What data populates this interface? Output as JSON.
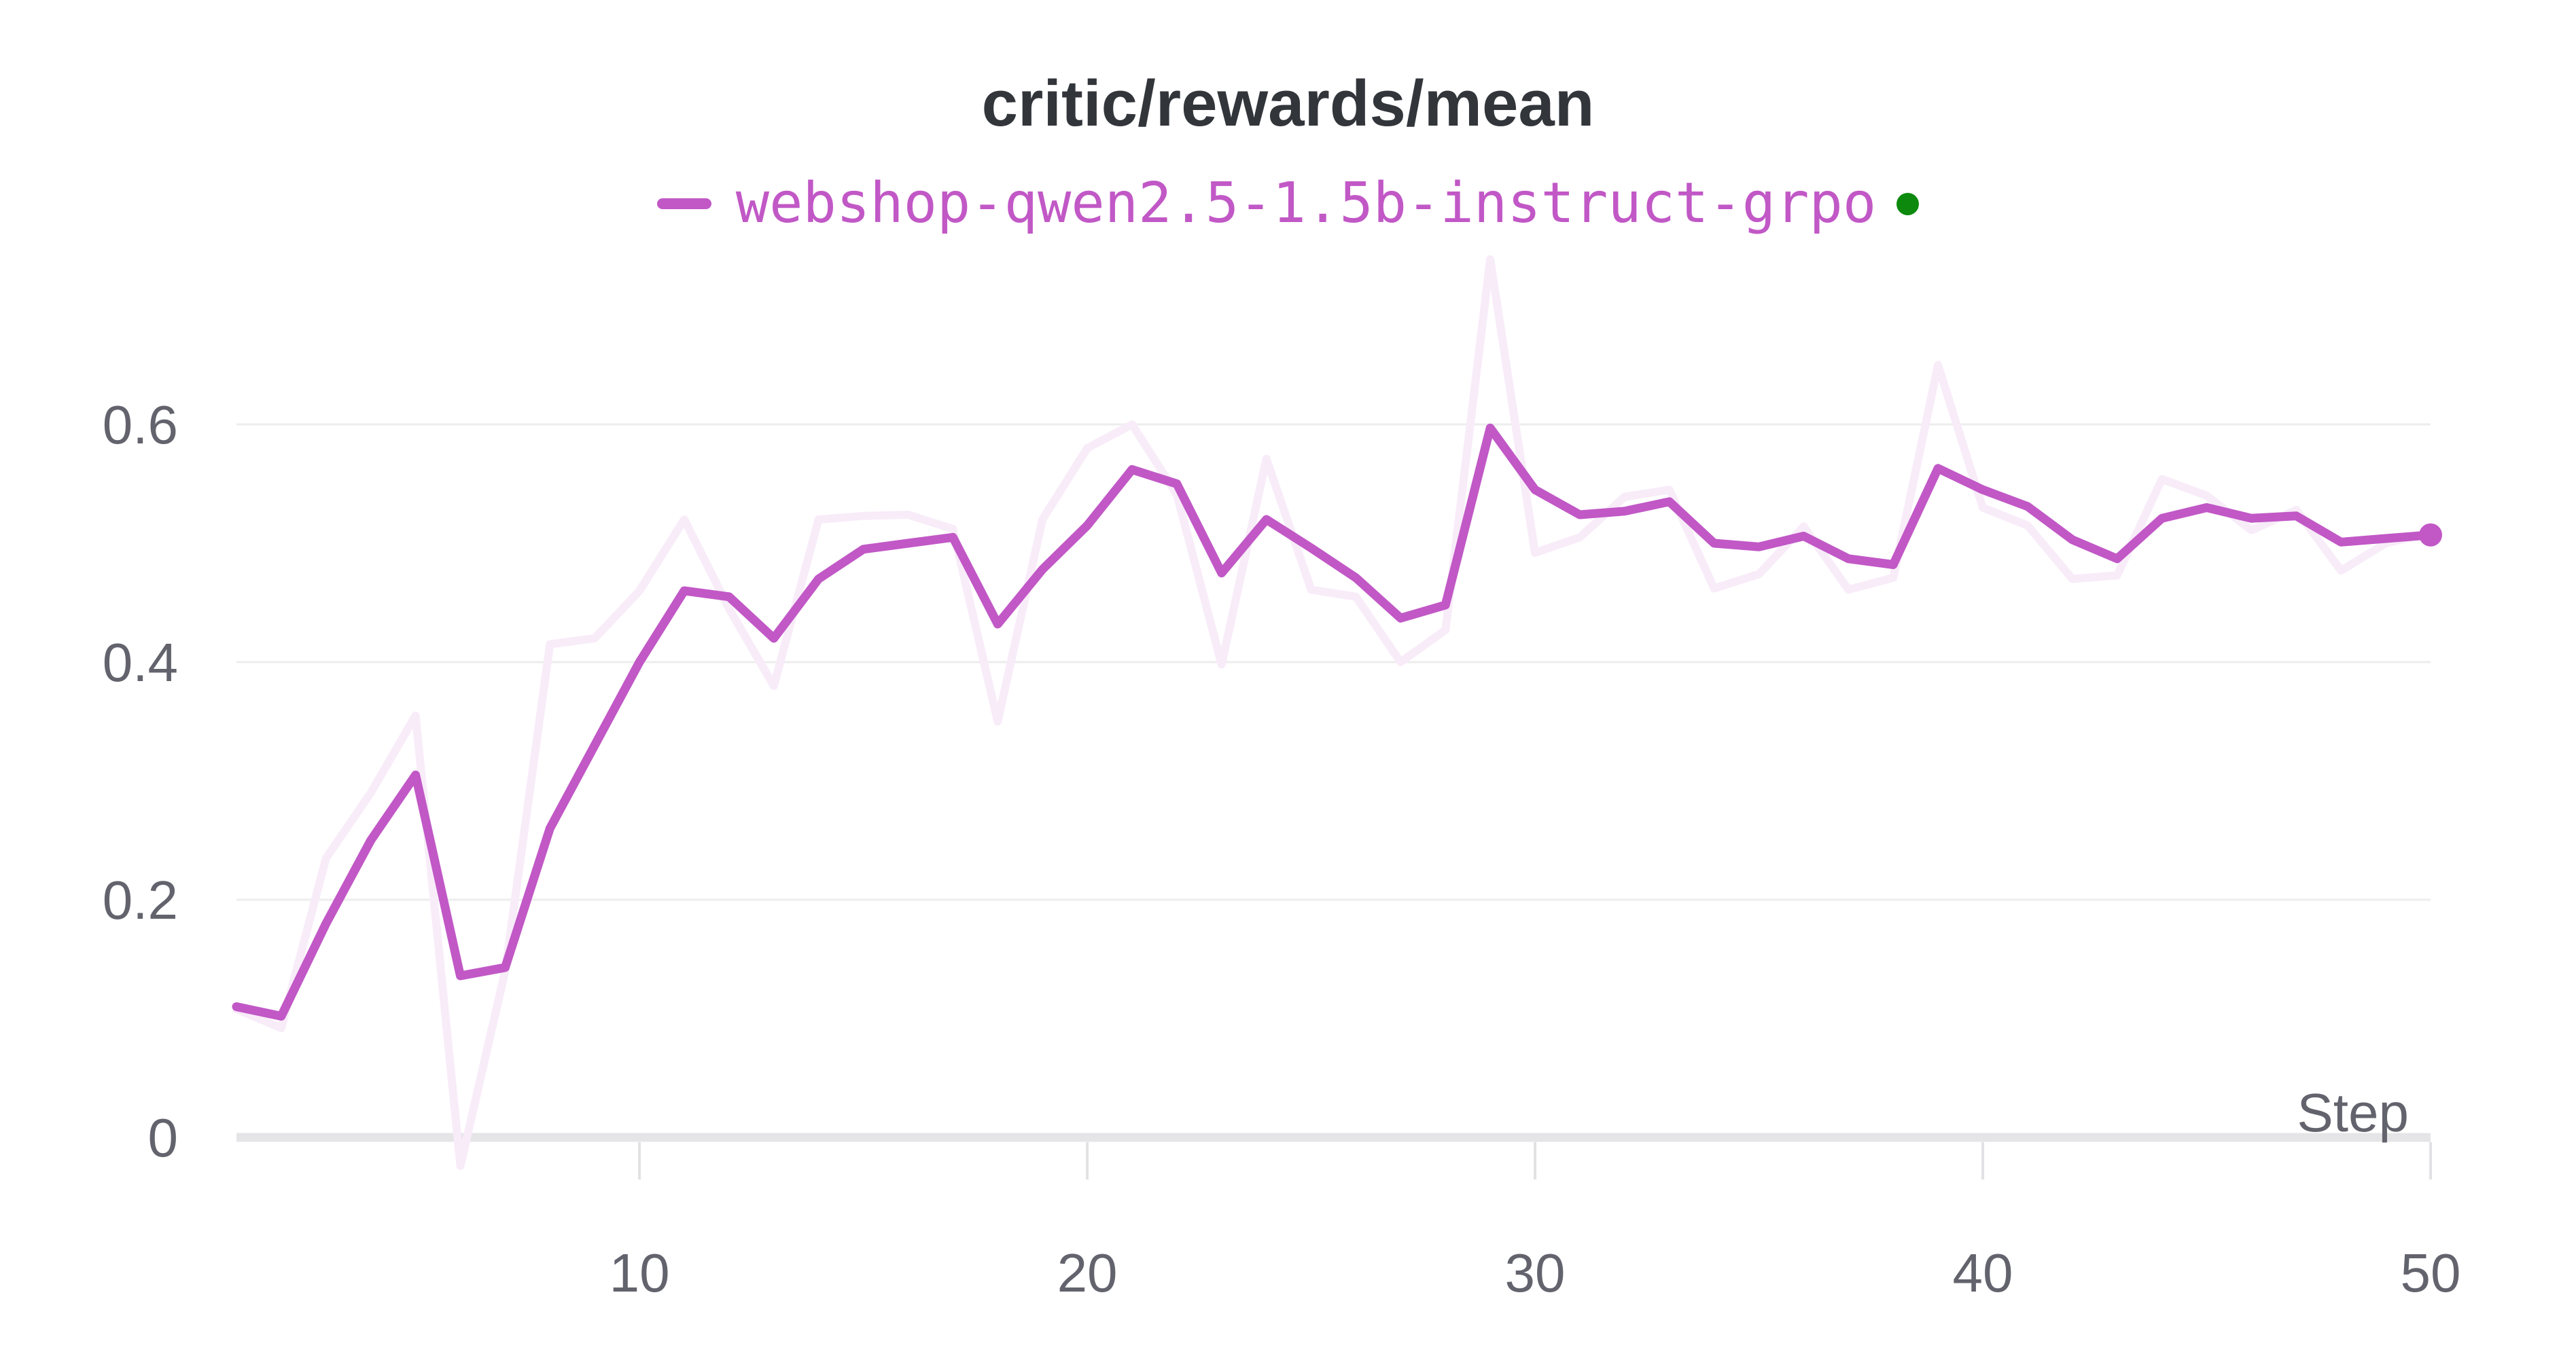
{
  "header": {
    "title": "critic/rewards/mean"
  },
  "legend": {
    "series_label": "webshop-qwen2.5-1.5b-instruct-grpo"
  },
  "axes": {
    "xlabel": "Step"
  },
  "colors": {
    "background": "#ffffff",
    "title": "#32363b",
    "tick_text": "#63636d",
    "grid": "#ededed",
    "axis_bar": "#e5e5e8",
    "tick_mark": "#e2e2e5",
    "accent_magenta": "#c158c6",
    "raw_line": "#f8ecf9",
    "status_green": "#0d8a0d"
  },
  "chart_data": {
    "type": "line",
    "title": "critic/rewards/mean",
    "xlabel": "Step",
    "ylabel": "",
    "grid": "horizontal",
    "legend_position": "top-center",
    "xlim": [
      1,
      50
    ],
    "ylim": [
      -0.05,
      0.76
    ],
    "x": [
      1,
      2,
      3,
      4,
      5,
      6,
      7,
      8,
      9,
      10,
      11,
      12,
      13,
      14,
      15,
      16,
      17,
      18,
      19,
      20,
      21,
      22,
      23,
      24,
      25,
      26,
      27,
      28,
      29,
      30,
      31,
      32,
      33,
      34,
      35,
      36,
      37,
      38,
      39,
      40,
      41,
      42,
      43,
      44,
      45,
      46,
      47,
      48,
      49,
      50
    ],
    "series": [
      {
        "name": "webshop-qwen2.5-1.5b-instruct-grpo (raw)",
        "role": "raw-unsmoothed",
        "color": "#f8ecf9",
        "width": 12,
        "values": [
          0.108,
          0.092,
          0.235,
          0.29,
          0.355,
          -0.024,
          0.14,
          0.415,
          0.42,
          0.46,
          0.52,
          0.445,
          0.38,
          0.52,
          0.523,
          0.524,
          0.512,
          0.35,
          0.52,
          0.58,
          0.6,
          0.541,
          0.398,
          0.571,
          0.461,
          0.455,
          0.4,
          0.427,
          0.739,
          0.492,
          0.505,
          0.539,
          0.545,
          0.462,
          0.474,
          0.514,
          0.461,
          0.471,
          0.65,
          0.53,
          0.515,
          0.47,
          0.473,
          0.554,
          0.54,
          0.511,
          0.528,
          0.477,
          0.5,
          0.509
        ]
      },
      {
        "name": "webshop-qwen2.5-1.5b-instruct-grpo",
        "role": "smoothed",
        "color": "#c158c6",
        "width": 13,
        "values": [
          0.11,
          0.102,
          0.18,
          0.25,
          0.305,
          0.136,
          0.143,
          0.26,
          0.33,
          0.4,
          0.46,
          0.455,
          0.42,
          0.47,
          0.495,
          0.5,
          0.505,
          0.432,
          0.478,
          0.515,
          0.562,
          0.55,
          0.475,
          0.52,
          0.496,
          0.471,
          0.437,
          0.448,
          0.597,
          0.545,
          0.524,
          0.527,
          0.535,
          0.5,
          0.497,
          0.506,
          0.487,
          0.482,
          0.563,
          0.545,
          0.531,
          0.503,
          0.487,
          0.521,
          0.53,
          0.521,
          0.523,
          0.501,
          0.504,
          0.507
        ]
      }
    ],
    "xticks": [
      {
        "label": "10",
        "value": 10
      },
      {
        "label": "20",
        "value": 20
      },
      {
        "label": "30",
        "value": 30
      },
      {
        "label": "40",
        "value": 40
      },
      {
        "label": "50",
        "value": 50
      }
    ],
    "yticks": [
      {
        "label": "0",
        "value": 0
      },
      {
        "label": "0.2",
        "value": 0.2
      },
      {
        "label": "0.4",
        "value": 0.4
      },
      {
        "label": "0.6",
        "value": 0.6
      }
    ],
    "end_marker": {
      "series_index": 1,
      "step": 50,
      "value": 0.507,
      "radius": 17
    }
  }
}
